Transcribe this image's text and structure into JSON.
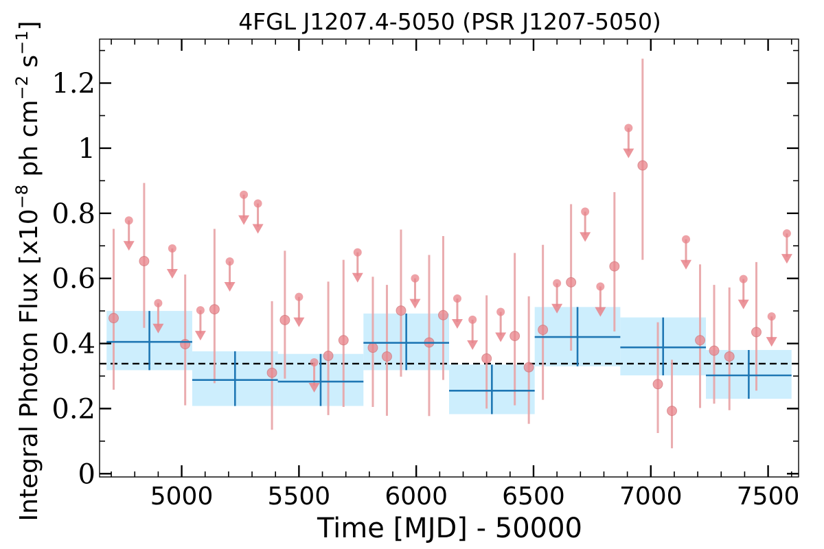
{
  "chart_data": {
    "type": "scatter",
    "title": "4FGL J1207.4-5050 (PSR J1207-5050)",
    "xlabel": "Time [MJD] - 50000",
    "ylabel": "Integral Photon Flux [x10^-8 ph cm^-2 s^-1]",
    "ylabel_parts": {
      "prefix": "Integral Photon Flux [x10",
      "exp1": "−8",
      "mid": " ph cm",
      "exp2": "−2",
      "mid2": " s",
      "exp3": "−1",
      "suffix": "]"
    },
    "xlim": [
      4650,
      7630
    ],
    "ylim": [
      -0.01,
      1.335
    ],
    "xticks": [
      5000,
      5500,
      6000,
      6500,
      7000,
      7500
    ],
    "xtick_labels": [
      "5000",
      "5500",
      "6000",
      "6500",
      "7000",
      "7500"
    ],
    "yticks": [
      0,
      0.2,
      0.4,
      0.6,
      0.8,
      1.0,
      1.2
    ],
    "ytick_labels": [
      "0",
      "0.2",
      "0.4",
      "0.6",
      "0.8",
      "1",
      "1.2"
    ],
    "grid": false,
    "legend": "none",
    "average_flux": 0.338,
    "colors": {
      "detection": "#e8838a",
      "detection_err": "#e8a3a6",
      "long_bin": "#1f77b4",
      "band": "#cdeefd",
      "average": "#000000"
    },
    "detections": [
      {
        "x": 4710,
        "y": 0.478,
        "lo": 0.258,
        "hi": 0.752
      },
      {
        "x": 4840,
        "y": 0.653,
        "lo": 0.448,
        "hi": 0.893
      },
      {
        "x": 5015,
        "y": 0.398,
        "lo": 0.21,
        "hi": 0.612
      },
      {
        "x": 5140,
        "y": 0.505,
        "lo": 0.278,
        "hi": 0.752
      },
      {
        "x": 5385,
        "y": 0.31,
        "lo": 0.135,
        "hi": 0.53
      },
      {
        "x": 5440,
        "y": 0.472,
        "lo": 0.292,
        "hi": 0.685
      },
      {
        "x": 5625,
        "y": 0.362,
        "lo": 0.18,
        "hi": 0.59
      },
      {
        "x": 5690,
        "y": 0.41,
        "lo": 0.205,
        "hi": 0.657
      },
      {
        "x": 5815,
        "y": 0.387,
        "lo": 0.205,
        "hi": 0.605
      },
      {
        "x": 5875,
        "y": 0.36,
        "lo": 0.178,
        "hi": 0.58
      },
      {
        "x": 5935,
        "y": 0.501,
        "lo": 0.298,
        "hi": 0.75
      },
      {
        "x": 6055,
        "y": 0.403,
        "lo": 0.177,
        "hi": 0.672
      },
      {
        "x": 6115,
        "y": 0.487,
        "lo": 0.288,
        "hi": 0.73
      },
      {
        "x": 6300,
        "y": 0.354,
        "lo": 0.2,
        "hi": 0.548
      },
      {
        "x": 6420,
        "y": 0.423,
        "lo": 0.21,
        "hi": 0.678
      },
      {
        "x": 6480,
        "y": 0.327,
        "lo": 0.153,
        "hi": 0.545
      },
      {
        "x": 6540,
        "y": 0.442,
        "lo": 0.227,
        "hi": 0.703
      },
      {
        "x": 6660,
        "y": 0.588,
        "lo": 0.378,
        "hi": 0.828
      },
      {
        "x": 6845,
        "y": 0.637,
        "lo": 0.437,
        "hi": 0.865
      },
      {
        "x": 6965,
        "y": 0.947,
        "lo": 0.657,
        "hi": 1.275
      },
      {
        "x": 7030,
        "y": 0.275,
        "lo": 0.125,
        "hi": 0.465
      },
      {
        "x": 7090,
        "y": 0.193,
        "lo": 0.078,
        "hi": 0.35
      },
      {
        "x": 7210,
        "y": 0.41,
        "lo": 0.202,
        "hi": 0.643
      },
      {
        "x": 7270,
        "y": 0.378,
        "lo": 0.215,
        "hi": 0.58
      },
      {
        "x": 7335,
        "y": 0.36,
        "lo": 0.195,
        "hi": 0.572
      },
      {
        "x": 7450,
        "y": 0.435,
        "lo": 0.255,
        "hi": 0.65
      }
    ],
    "upper_limits": [
      {
        "x": 4775,
        "y": 0.778
      },
      {
        "x": 4900,
        "y": 0.524
      },
      {
        "x": 4960,
        "y": 0.692
      },
      {
        "x": 5080,
        "y": 0.502
      },
      {
        "x": 5205,
        "y": 0.652
      },
      {
        "x": 5265,
        "y": 0.857
      },
      {
        "x": 5325,
        "y": 0.83
      },
      {
        "x": 5500,
        "y": 0.543
      },
      {
        "x": 5565,
        "y": 0.342
      },
      {
        "x": 5750,
        "y": 0.68
      },
      {
        "x": 5995,
        "y": 0.6
      },
      {
        "x": 6175,
        "y": 0.538
      },
      {
        "x": 6240,
        "y": 0.473
      },
      {
        "x": 6360,
        "y": 0.497
      },
      {
        "x": 6600,
        "y": 0.585
      },
      {
        "x": 6720,
        "y": 0.805
      },
      {
        "x": 6785,
        "y": 0.575
      },
      {
        "x": 6905,
        "y": 1.062
      },
      {
        "x": 7150,
        "y": 0.72
      },
      {
        "x": 7395,
        "y": 0.598
      },
      {
        "x": 7515,
        "y": 0.483
      },
      {
        "x": 7580,
        "y": 0.738
      }
    ],
    "long_bins": [
      {
        "x0": 4680,
        "x1": 5045,
        "y": 0.405,
        "lo": 0.318,
        "hi": 0.5
      },
      {
        "x0": 5045,
        "x1": 5410,
        "y": 0.288,
        "lo": 0.208,
        "hi": 0.376
      },
      {
        "x0": 5410,
        "x1": 5775,
        "y": 0.283,
        "lo": 0.208,
        "hi": 0.368
      },
      {
        "x0": 5775,
        "x1": 6140,
        "y": 0.402,
        "lo": 0.318,
        "hi": 0.492
      },
      {
        "x0": 6140,
        "x1": 6505,
        "y": 0.255,
        "lo": 0.183,
        "hi": 0.335
      },
      {
        "x0": 6505,
        "x1": 6870,
        "y": 0.42,
        "lo": 0.33,
        "hi": 0.512
      },
      {
        "x0": 6870,
        "x1": 7235,
        "y": 0.388,
        "lo": 0.302,
        "hi": 0.48
      },
      {
        "x0": 7235,
        "x1": 7600,
        "y": 0.302,
        "lo": 0.23,
        "hi": 0.38
      }
    ]
  }
}
